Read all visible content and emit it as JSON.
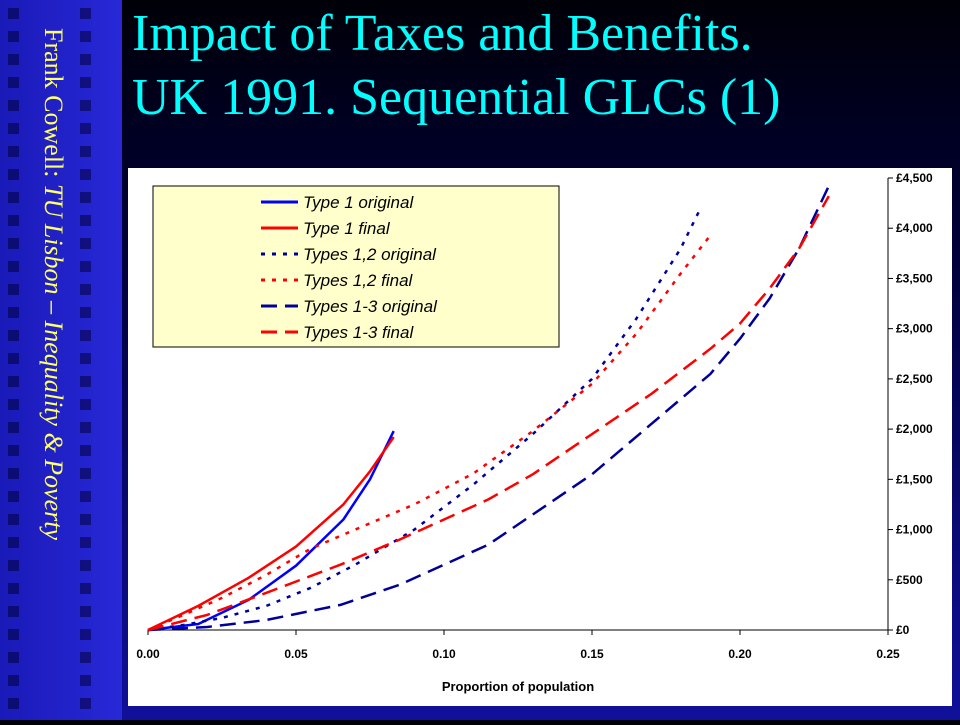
{
  "slide": {
    "title_line1": "Impact of Taxes and Benefits.",
    "title_line2": "UK 1991. Sequential GLCs (1)",
    "sidebar_author": "Frank Cowell: ",
    "sidebar_course": "TU Lisbon – Inequality & Poverty",
    "colors": {
      "title": "#00ffff",
      "sidebar_text": "#ffff66",
      "accent": "#2a2ad6"
    }
  },
  "chart_data": {
    "type": "line",
    "title": "",
    "xlabel": "Proportion of population",
    "ylabel": "",
    "xlim": [
      0,
      0.25
    ],
    "ylim": [
      0,
      4500
    ],
    "x_ticks": [
      "0.00",
      "0.05",
      "0.10",
      "0.15",
      "0.20",
      "0.25"
    ],
    "x_tick_values": [
      0,
      0.05,
      0.1,
      0.15,
      0.2,
      0.25
    ],
    "y_ticks": [
      "£0",
      "£500",
      "£1,000",
      "£1,500",
      "£2,000",
      "£2,500",
      "£3,000",
      "£3,500",
      "£4,000",
      "£4,500"
    ],
    "y_tick_values": [
      0,
      500,
      1000,
      1500,
      2000,
      2500,
      3000,
      3500,
      4000,
      4500
    ],
    "y_axis_side": "right",
    "grid": false,
    "legend_position": "top-left",
    "series": [
      {
        "name": "Type 1 original",
        "color": "#0000ff",
        "dash": "solid",
        "x": [
          0,
          0.017,
          0.034,
          0.05,
          0.066,
          0.075,
          0.083
        ],
        "y": [
          0,
          60,
          300,
          640,
          1100,
          1500,
          1980
        ]
      },
      {
        "name": "Type 1 final",
        "color": "#ff0000",
        "dash": "solid",
        "x": [
          0,
          0.017,
          0.034,
          0.05,
          0.066,
          0.075,
          0.083
        ],
        "y": [
          0,
          240,
          520,
          830,
          1250,
          1580,
          1920
        ]
      },
      {
        "name": "Types 1,2 original",
        "color": "#000099",
        "dash": "dotted",
        "x": [
          0,
          0.012,
          0.025,
          0.04,
          0.055,
          0.07,
          0.09,
          0.11,
          0.13,
          0.15,
          0.165,
          0.18,
          0.186
        ],
        "y": [
          0,
          50,
          120,
          240,
          420,
          650,
          1000,
          1450,
          1950,
          2500,
          3100,
          3800,
          4160
        ]
      },
      {
        "name": "Types 1,2 final",
        "color": "#ff0000",
        "dash": "dotted",
        "x": [
          0,
          0.012,
          0.025,
          0.04,
          0.055,
          0.07,
          0.09,
          0.11,
          0.13,
          0.15,
          0.165,
          0.18,
          0.19
        ],
        "y": [
          0,
          150,
          320,
          550,
          810,
          1000,
          1250,
          1560,
          1980,
          2450,
          2950,
          3550,
          3930
        ]
      },
      {
        "name": "Types 1-3 original",
        "color": "#000099",
        "dash": "dashed",
        "x": [
          0,
          0.02,
          0.04,
          0.065,
          0.085,
          0.1,
          0.115,
          0.13,
          0.15,
          0.17,
          0.19,
          0.2,
          0.21,
          0.22,
          0.23
        ],
        "y": [
          0,
          30,
          100,
          250,
          450,
          650,
          850,
          1150,
          1550,
          2050,
          2550,
          2900,
          3300,
          3800,
          4420
        ]
      },
      {
        "name": "Types 1-3 final",
        "color": "#ff0000",
        "dash": "dashed",
        "x": [
          0,
          0.02,
          0.04,
          0.065,
          0.085,
          0.1,
          0.115,
          0.13,
          0.15,
          0.17,
          0.19,
          0.2,
          0.21,
          0.22,
          0.23
        ],
        "y": [
          0,
          150,
          370,
          650,
          900,
          1100,
          1300,
          1550,
          1950,
          2350,
          2800,
          3050,
          3400,
          3800,
          4320
        ]
      }
    ]
  }
}
